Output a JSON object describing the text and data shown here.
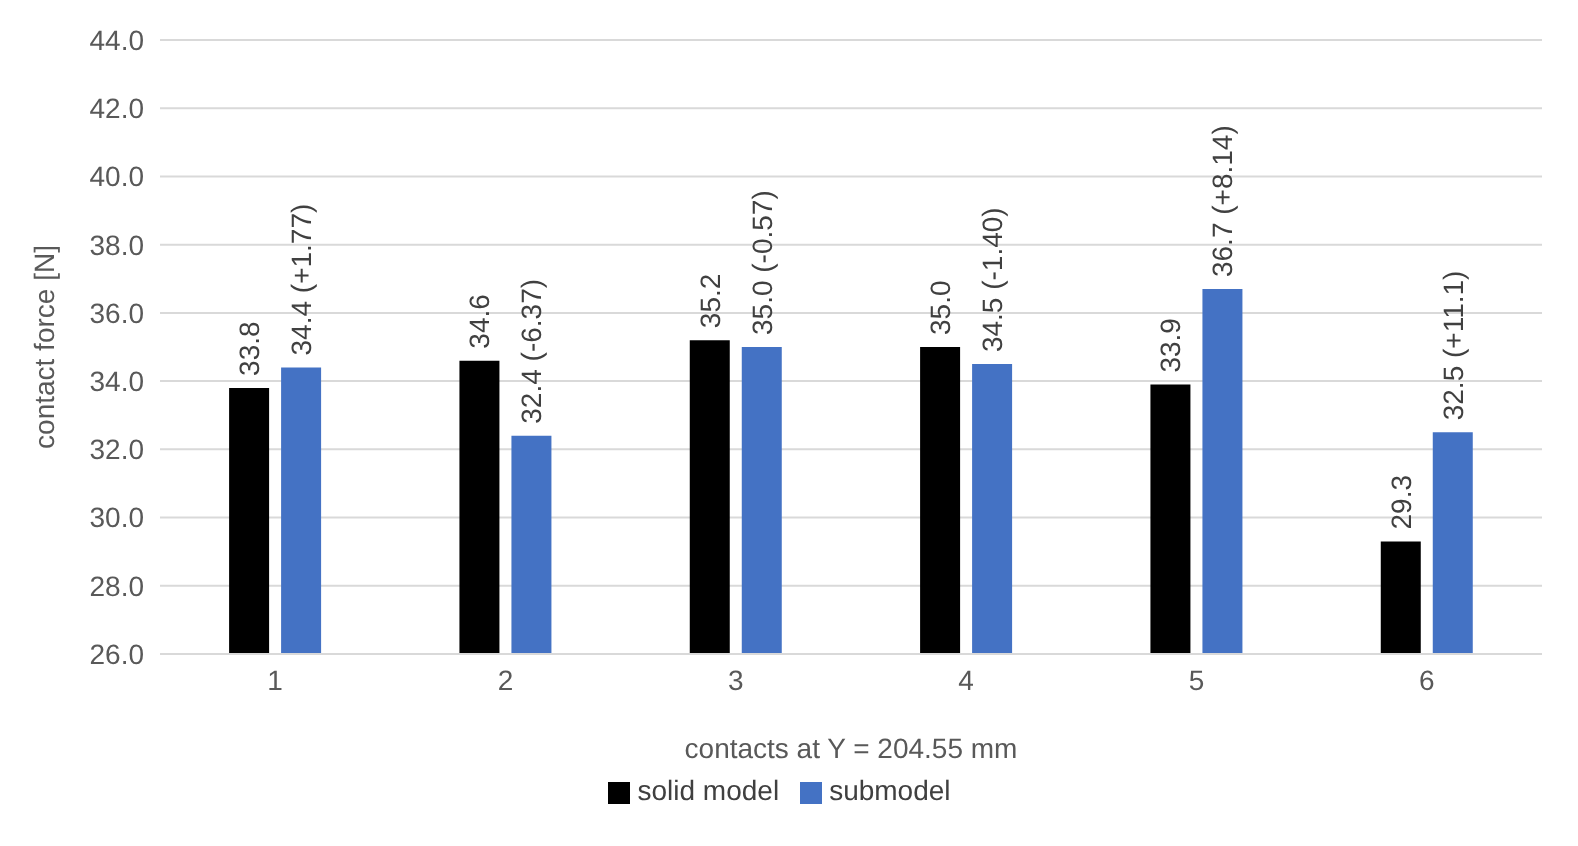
{
  "chart_data": {
    "type": "bar",
    "xlabel": "contacts at Y = 204.55 mm",
    "ylabel": "contact force [N]",
    "categories": [
      "1",
      "2",
      "3",
      "4",
      "5",
      "6"
    ],
    "series": [
      {
        "name": "solid model",
        "color": "#000000",
        "values": [
          33.8,
          34.6,
          35.2,
          35.0,
          33.9,
          29.3
        ],
        "value_labels": [
          "33.8",
          "34.6",
          "35.2",
          "35.0",
          "33.9",
          "29.3"
        ]
      },
      {
        "name": "submodel",
        "color": "#4472c4",
        "values": [
          34.4,
          32.4,
          35.0,
          34.5,
          36.7,
          32.5
        ],
        "value_labels": [
          "34.4 (+1.77)",
          "32.4 (-6.37)",
          "35.0 (-0.57)",
          "34.5 (-1.40)",
          "36.7 (+8.14)",
          "32.5 (+11.1)"
        ]
      }
    ],
    "ylim": [
      26,
      44
    ],
    "yticks": [
      {
        "value": 26,
        "label": "26.0"
      },
      {
        "value": 28,
        "label": "28.0"
      },
      {
        "value": 30,
        "label": "30.0"
      },
      {
        "value": 32,
        "label": "32.0"
      },
      {
        "value": 34,
        "label": "34.0"
      },
      {
        "value": 36,
        "label": "36.0"
      },
      {
        "value": 38,
        "label": "38.0"
      },
      {
        "value": 40,
        "label": "40.0"
      },
      {
        "value": 42,
        "label": "42.0"
      },
      {
        "value": 44,
        "label": "44.0"
      }
    ],
    "grid": "y",
    "legend": "bottom"
  }
}
